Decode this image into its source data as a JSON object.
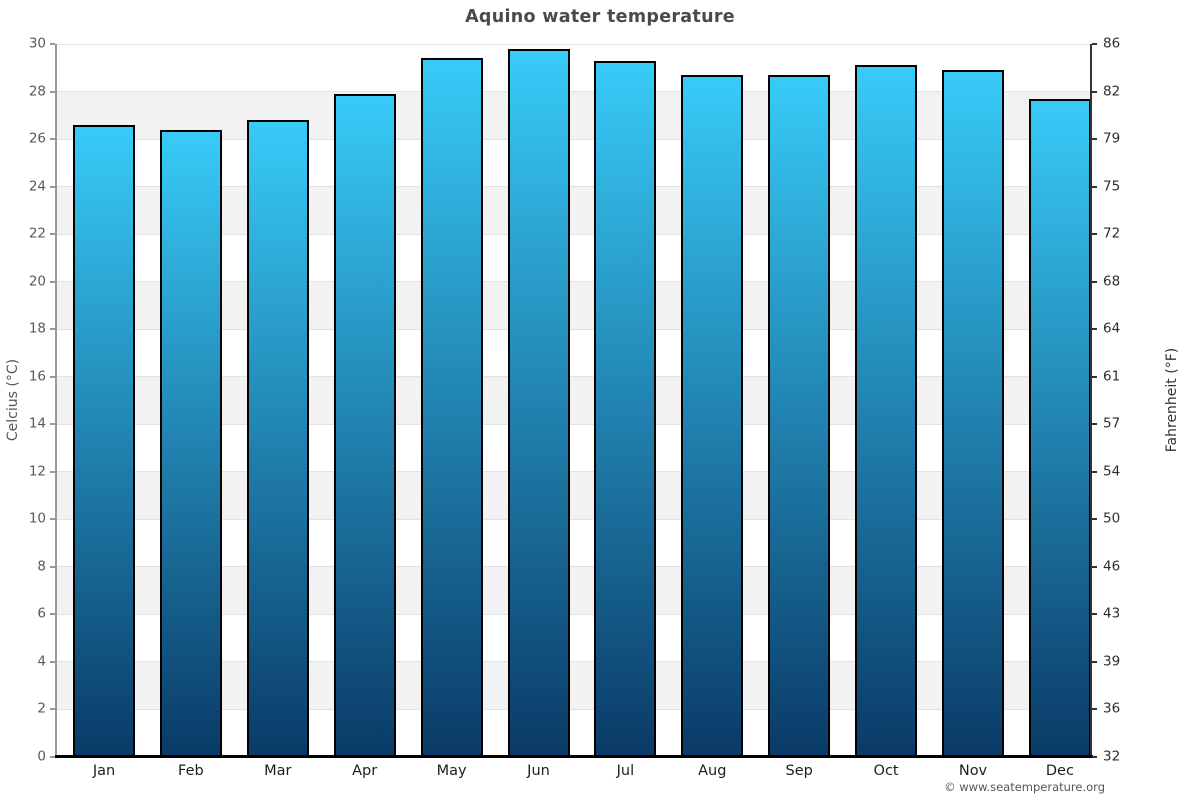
{
  "title": "Aquino water temperature",
  "attribution": "© www.seatemperature.org",
  "chart_data": {
    "type": "bar",
    "title": "Aquino water temperature",
    "categories": [
      "Jan",
      "Feb",
      "Mar",
      "Apr",
      "May",
      "Jun",
      "Jul",
      "Aug",
      "Sep",
      "Oct",
      "Nov",
      "Dec"
    ],
    "values": [
      26.6,
      26.4,
      26.8,
      27.9,
      29.4,
      29.8,
      29.3,
      28.7,
      28.7,
      29.1,
      28.9,
      27.7
    ],
    "unit": "°C",
    "ylabel_left": "Celcius (°C)",
    "ylabel_right": "Fahrenheit (°F)",
    "ylim": [
      0,
      30
    ],
    "tick_step": 2,
    "celsius_ticks": [
      0,
      2,
      4,
      6,
      8,
      10,
      12,
      14,
      16,
      18,
      20,
      22,
      24,
      26,
      28,
      30
    ],
    "fahrenheit_tick_labels": [
      "32",
      "36",
      "39",
      "43",
      "46",
      "50",
      "54",
      "57",
      "61",
      "64",
      "68",
      "72",
      "75",
      "79",
      "82",
      "86"
    ],
    "grid": "banded-horizontal",
    "legend": "none",
    "colors": {
      "bar_gradient_top": "#38cbf8",
      "bar_gradient_bottom": "#0a3a67",
      "bar_border": "#000000",
      "band_gray": "#f2f2f2",
      "gridline": "#e2e2e2",
      "axis_left": "#999999",
      "axis_right": "#333333",
      "axis_bottom": "#000000",
      "title_text": "#4a4a4a"
    }
  }
}
